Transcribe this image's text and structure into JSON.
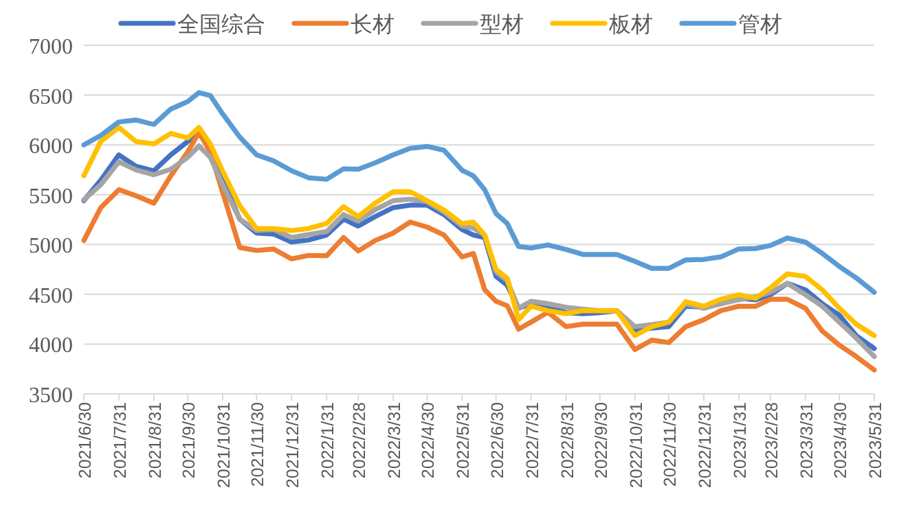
{
  "chart_data": {
    "type": "line",
    "x": [
      "2021-06-30",
      "2021-07-15",
      "2021-07-31",
      "2021-08-15",
      "2021-08-31",
      "2021-09-15",
      "2021-09-30",
      "2021-10-10",
      "2021-10-20",
      "2021-10-31",
      "2021-11-15",
      "2021-11-30",
      "2021-12-15",
      "2021-12-31",
      "2022-01-15",
      "2022-01-31",
      "2022-02-15",
      "2022-02-28",
      "2022-03-15",
      "2022-03-31",
      "2022-04-15",
      "2022-04-30",
      "2022-05-15",
      "2022-05-31",
      "2022-06-10",
      "2022-06-20",
      "2022-06-30",
      "2022-07-10",
      "2022-07-20",
      "2022-07-31",
      "2022-08-15",
      "2022-08-31",
      "2022-09-15",
      "2022-09-30",
      "2022-10-15",
      "2022-10-31",
      "2022-11-15",
      "2022-11-30",
      "2022-12-15",
      "2022-12-31",
      "2023-01-15",
      "2023-01-31",
      "2023-02-15",
      "2023-02-28",
      "2023-03-15",
      "2023-03-31",
      "2023-04-15",
      "2023-04-30",
      "2023-05-15",
      "2023-05-31"
    ],
    "series": [
      {
        "name": "全国综合",
        "color": "#4472c4",
        "values": [
          5440,
          5645,
          5900,
          5785,
          5740,
          5900,
          6035,
          6115,
          5965,
          5645,
          5255,
          5115,
          5105,
          5025,
          5045,
          5095,
          5255,
          5185,
          5280,
          5370,
          5395,
          5395,
          5300,
          5150,
          5095,
          5070,
          4680,
          4590,
          4360,
          4405,
          4380,
          4315,
          4305,
          4315,
          4335,
          4140,
          4160,
          4175,
          4380,
          4370,
          4405,
          4460,
          4445,
          4495,
          4610,
          4545,
          4405,
          4290,
          4085,
          3955
        ]
      },
      {
        "name": "长材",
        "color": "#ed7d31",
        "values": [
          5040,
          5370,
          5550,
          5490,
          5415,
          5690,
          5930,
          6125,
          5930,
          5520,
          4970,
          4940,
          4955,
          4855,
          4890,
          4887,
          5070,
          4935,
          5040,
          5115,
          5225,
          5175,
          5095,
          4875,
          4910,
          4545,
          4430,
          4385,
          4150,
          4220,
          4320,
          4175,
          4200,
          4200,
          4200,
          3945,
          4040,
          4015,
          4175,
          4245,
          4335,
          4380,
          4380,
          4450,
          4450,
          4360,
          4130,
          3990,
          3875,
          3740
        ]
      },
      {
        "name": "型材",
        "color": "#a5a5a5",
        "values": [
          5450,
          5600,
          5830,
          5750,
          5700,
          5755,
          5875,
          5990,
          5875,
          5600,
          5255,
          5140,
          5150,
          5070,
          5100,
          5130,
          5300,
          5235,
          5350,
          5440,
          5455,
          5430,
          5325,
          5185,
          5165,
          5095,
          4725,
          4635,
          4360,
          4430,
          4405,
          4370,
          4350,
          4335,
          4335,
          4175,
          4195,
          4220,
          4405,
          4360,
          4405,
          4445,
          4475,
          4520,
          4610,
          4495,
          4380,
          4220,
          4060,
          3875
        ]
      },
      {
        "name": "板材",
        "color": "#ffc000",
        "values": [
          5690,
          6035,
          6175,
          6035,
          6010,
          6115,
          6070,
          6175,
          6010,
          5735,
          5390,
          5160,
          5160,
          5140,
          5160,
          5210,
          5380,
          5280,
          5415,
          5530,
          5530,
          5440,
          5345,
          5210,
          5225,
          5095,
          4750,
          4660,
          4245,
          4380,
          4335,
          4305,
          4335,
          4335,
          4335,
          4085,
          4175,
          4220,
          4425,
          4380,
          4450,
          4495,
          4460,
          4565,
          4705,
          4680,
          4545,
          4360,
          4200,
          4085
        ]
      },
      {
        "name": "管材",
        "color": "#5b9bd5",
        "values": [
          6000,
          6095,
          6230,
          6250,
          6205,
          6360,
          6435,
          6525,
          6495,
          6310,
          6080,
          5900,
          5840,
          5740,
          5670,
          5655,
          5760,
          5755,
          5820,
          5900,
          5965,
          5985,
          5945,
          5745,
          5690,
          5550,
          5310,
          5210,
          4980,
          4965,
          4995,
          4950,
          4900,
          4900,
          4900,
          4830,
          4760,
          4760,
          4845,
          4850,
          4875,
          4955,
          4960,
          4990,
          5065,
          5025,
          4910,
          4780,
          4665,
          4520
        ]
      }
    ],
    "xlim": [
      "2021-06-30",
      "2023-05-31"
    ],
    "xticks": [
      {
        "value": "2021-06-30",
        "label": "2021/6/30"
      },
      {
        "value": "2021-07-31",
        "label": "2021/7/31"
      },
      {
        "value": "2021-08-31",
        "label": "2021/8/31"
      },
      {
        "value": "2021-09-30",
        "label": "2021/9/30"
      },
      {
        "value": "2021-10-31",
        "label": "2021/10/31"
      },
      {
        "value": "2021-11-30",
        "label": "2021/11/30"
      },
      {
        "value": "2021-12-31",
        "label": "2021/12/31"
      },
      {
        "value": "2022-01-31",
        "label": "2022/1/31"
      },
      {
        "value": "2022-02-28",
        "label": "2022/2/28"
      },
      {
        "value": "2022-03-31",
        "label": "2022/3/31"
      },
      {
        "value": "2022-04-30",
        "label": "2022/4/30"
      },
      {
        "value": "2022-05-31",
        "label": "2022/5/31"
      },
      {
        "value": "2022-06-30",
        "label": "2022/6/30"
      },
      {
        "value": "2022-07-31",
        "label": "2022/7/31"
      },
      {
        "value": "2022-08-31",
        "label": "2022/8/31"
      },
      {
        "value": "2022-09-30",
        "label": "2022/9/30"
      },
      {
        "value": "2022-10-31",
        "label": "2022/10/31"
      },
      {
        "value": "2022-11-30",
        "label": "2022/11/30"
      },
      {
        "value": "2022-12-31",
        "label": "2022/12/31"
      },
      {
        "value": "2023-01-31",
        "label": "2023/1/31"
      },
      {
        "value": "2023-02-28",
        "label": "2023/2/28"
      },
      {
        "value": "2023-03-31",
        "label": "2023/3/31"
      },
      {
        "value": "2023-04-30",
        "label": "2023/4/30"
      },
      {
        "value": "2023-05-31",
        "label": "2023/5/31"
      }
    ],
    "ylim": [
      3500,
      7000
    ],
    "yticks": [
      3500,
      4000,
      4500,
      5000,
      5500,
      6000,
      6500,
      7000
    ],
    "grid": "y",
    "legend": "top",
    "marker": "none",
    "line_style": "solid"
  }
}
